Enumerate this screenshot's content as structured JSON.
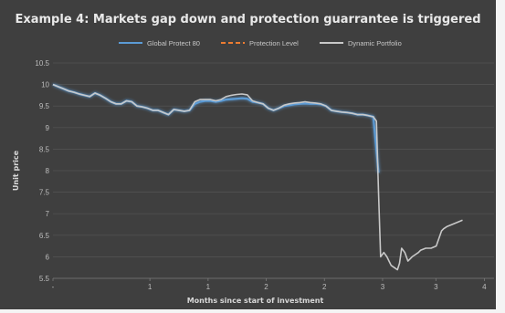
{
  "chart_data": {
    "type": "line",
    "title": "Example 4: Markets gap down and protection guarrantee is triggered",
    "xlabel": "Months since start of investment",
    "ylabel": "Unit price",
    "ylim": [
      5.5,
      10.5
    ],
    "yticks": [
      "5.5",
      "6",
      "6.5",
      "7",
      "7.5",
      "8",
      "8.5",
      "9",
      "9.5",
      "10",
      "10.5"
    ],
    "xticks": [
      "-",
      "1",
      "1",
      "2",
      "2",
      "3",
      "3",
      "4"
    ],
    "grid": true,
    "legend_position": "top",
    "colors": {
      "background": "#3f3f3f",
      "global_protect": "#5b9bd5",
      "protection_level": "#ed7d31",
      "dynamic_portfolio": "#c8c8c8"
    },
    "series": [
      {
        "name": "Global Protect 80",
        "x": [
          0,
          0.05,
          0.1,
          0.15,
          0.2,
          0.25,
          0.3,
          0.35,
          0.4,
          0.45,
          0.5,
          0.55,
          0.6,
          0.65,
          0.7,
          0.75,
          0.8,
          0.85,
          0.9,
          0.95,
          1.0,
          1.05,
          1.1,
          1.15,
          1.2,
          1.25,
          1.3,
          1.35,
          1.4,
          1.45,
          1.5,
          1.55,
          1.6,
          1.65,
          1.7,
          1.75,
          1.8,
          1.85,
          1.9,
          1.95,
          2.0,
          2.05,
          2.1,
          2.15,
          2.2,
          2.25,
          2.3,
          2.35,
          2.4,
          2.45,
          2.5,
          2.55,
          2.6,
          2.65,
          2.7,
          2.75,
          2.8,
          2.85,
          2.9,
          2.95,
          3.0,
          3.05,
          3.1
        ],
        "y": [
          10.0,
          9.95,
          9.9,
          9.85,
          9.82,
          9.78,
          9.75,
          9.72,
          9.8,
          9.75,
          9.68,
          9.6,
          9.55,
          9.55,
          9.62,
          9.6,
          9.5,
          9.48,
          9.45,
          9.4,
          9.4,
          9.35,
          9.3,
          9.42,
          9.4,
          9.38,
          9.4,
          9.55,
          9.6,
          9.62,
          9.62,
          9.6,
          9.62,
          9.65,
          9.66,
          9.67,
          9.68,
          9.67,
          9.6,
          9.58,
          9.55,
          9.45,
          9.4,
          9.45,
          9.5,
          9.52,
          9.54,
          9.55,
          9.56,
          9.55,
          9.55,
          9.54,
          9.5,
          9.4,
          9.38,
          9.36,
          9.35,
          9.33,
          9.3,
          9.3,
          9.28,
          9.25,
          7.95
        ]
      },
      {
        "name": "Protection Level",
        "x": [
          0,
          3.35
        ],
        "y": [
          8.0,
          8.0
        ]
      },
      {
        "name": "Dynamic Portfolio",
        "x": [
          0,
          0.05,
          0.1,
          0.15,
          0.2,
          0.25,
          0.3,
          0.35,
          0.4,
          0.45,
          0.5,
          0.55,
          0.6,
          0.65,
          0.7,
          0.75,
          0.8,
          0.85,
          0.9,
          0.95,
          1.0,
          1.05,
          1.1,
          1.15,
          1.2,
          1.25,
          1.3,
          1.35,
          1.4,
          1.45,
          1.5,
          1.55,
          1.6,
          1.65,
          1.7,
          1.75,
          1.8,
          1.85,
          1.9,
          1.95,
          2.0,
          2.05,
          2.1,
          2.15,
          2.2,
          2.25,
          2.3,
          2.35,
          2.4,
          2.45,
          2.5,
          2.55,
          2.6,
          2.65,
          2.7,
          2.75,
          2.8,
          2.85,
          2.9,
          2.95,
          3.0,
          3.05,
          3.08,
          3.1,
          3.12,
          3.15,
          3.18,
          3.2,
          3.22,
          3.25,
          3.28,
          3.3,
          3.32,
          3.35,
          3.38,
          3.4,
          3.42,
          3.45,
          3.48,
          3.5,
          3.55,
          3.6,
          3.65,
          3.7,
          3.72,
          3.75,
          3.8,
          3.85,
          3.9
        ],
        "y": [
          10.0,
          9.95,
          9.9,
          9.85,
          9.82,
          9.78,
          9.75,
          9.72,
          9.8,
          9.75,
          9.68,
          9.6,
          9.55,
          9.55,
          9.62,
          9.6,
          9.5,
          9.48,
          9.45,
          9.4,
          9.4,
          9.35,
          9.3,
          9.42,
          9.4,
          9.38,
          9.4,
          9.6,
          9.65,
          9.65,
          9.65,
          9.62,
          9.65,
          9.72,
          9.75,
          9.77,
          9.78,
          9.76,
          9.62,
          9.58,
          9.55,
          9.45,
          9.4,
          9.45,
          9.52,
          9.55,
          9.57,
          9.58,
          9.6,
          9.58,
          9.57,
          9.55,
          9.5,
          9.4,
          9.38,
          9.36,
          9.35,
          9.33,
          9.3,
          9.3,
          9.28,
          9.25,
          9.15,
          7.5,
          6.0,
          6.1,
          6.0,
          5.9,
          5.8,
          5.75,
          5.7,
          5.85,
          6.2,
          6.1,
          5.9,
          5.95,
          6.0,
          6.05,
          6.1,
          6.15,
          6.2,
          6.2,
          6.25,
          6.6,
          6.65,
          6.7,
          6.75,
          6.8,
          6.85
        ]
      }
    ]
  }
}
